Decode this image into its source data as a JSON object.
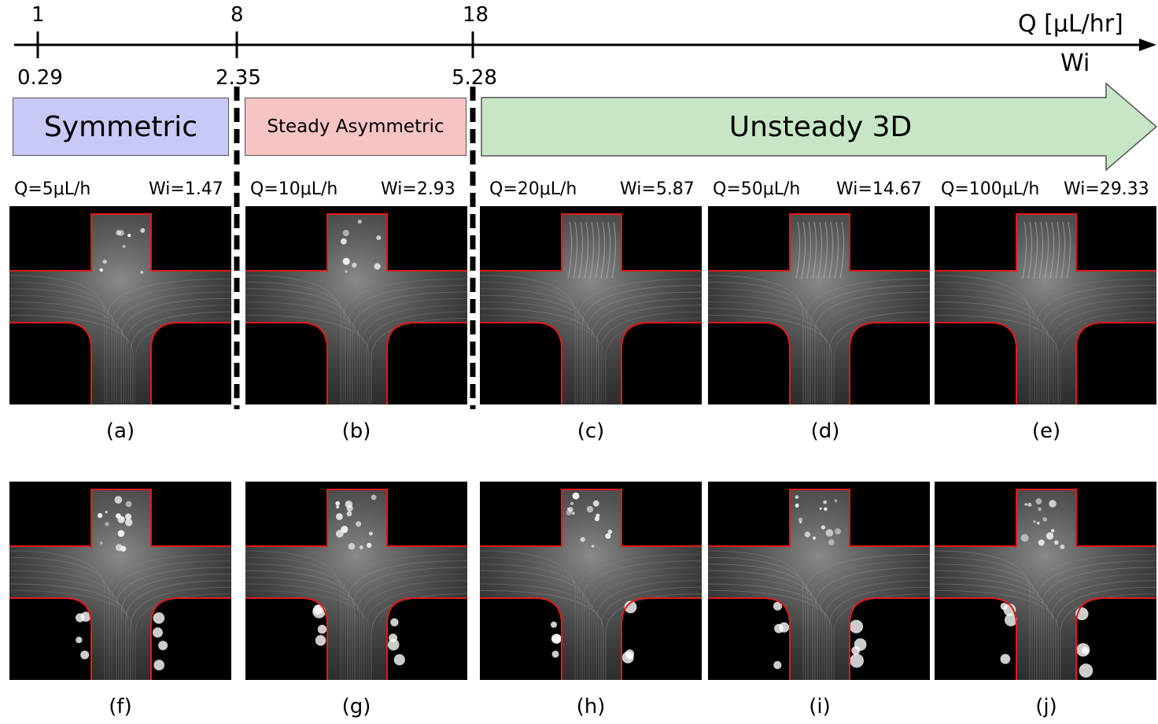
{
  "axis": {
    "q_label": "Q [μL/hr]",
    "wi_label": "Wi",
    "q_ticks": [
      "1",
      "8",
      "18"
    ],
    "wi_ticks": [
      "0.29",
      "2.35",
      "5.28"
    ]
  },
  "regimes": [
    {
      "label": "Symmetric",
      "color": "#c9c9f7"
    },
    {
      "label": "Steady Asymmetric",
      "color": "#f7c4c4"
    },
    {
      "label": "Unsteady 3D",
      "color": "#c6e6c6"
    }
  ],
  "conditions": [
    {
      "q": "Q=5μL/h",
      "wi": "Wi=1.47"
    },
    {
      "q": "Q=10μL/h",
      "wi": "Wi=2.93"
    },
    {
      "q": "Q=20μL/h",
      "wi": "Wi=5.87"
    },
    {
      "q": "Q=50μL/h",
      "wi": "Wi=14.67"
    },
    {
      "q": "Q=100μL/h",
      "wi": "Wi=29.33"
    }
  ],
  "captions_top": [
    "(a)",
    "(b)",
    "(c)",
    "(d)",
    "(e)"
  ],
  "captions_bottom": [
    "(f)",
    "(g)",
    "(h)",
    "(i)",
    "(j)"
  ],
  "colors": {
    "channel_outline": "#e01a1a",
    "background": "#000000"
  }
}
